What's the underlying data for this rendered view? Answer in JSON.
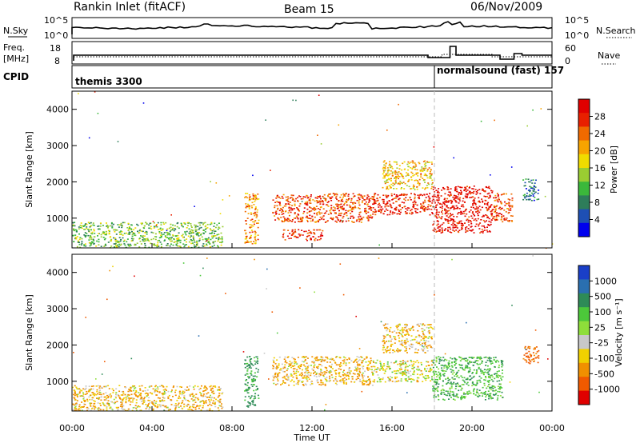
{
  "header": {
    "station": "Rankin Inlet (fitACF)",
    "beam": "Beam 15",
    "date": "06/Nov/2009"
  },
  "sky_panel": {
    "left_label": "N.Sky",
    "right_label": "N.Search",
    "left_top_tick": "10^5",
    "left_bottom_tick": "10^0",
    "right_top_tick": "10^5",
    "right_bottom_tick": "10^0"
  },
  "freq_panel": {
    "left_label_line1": "Freq.",
    "left_label_line2": "[MHz]",
    "right_label": "Nave",
    "left_top_tick": "18",
    "left_bottom_tick": "8",
    "right_top_tick": "60",
    "right_bottom_tick": "0"
  },
  "cpid_panel": {
    "label": "CPID",
    "program1": "themis 3300",
    "program2": "normalsound (fast) 157"
  },
  "power_panel": {
    "ylabel": "Slant Range [km]",
    "yticks": [
      "1000",
      "2000",
      "3000",
      "4000"
    ],
    "colorbar_label": "Power [dB]",
    "colorbar_ticks": [
      "4",
      "8",
      "12",
      "16",
      "20",
      "24",
      "28"
    ],
    "colors": [
      "#0000ee",
      "#1e4fb4",
      "#2e7d5a",
      "#3bb83b",
      "#9acd32",
      "#f0dc00",
      "#f7a400",
      "#f06a00",
      "#e82000",
      "#e00000"
    ]
  },
  "velocity_panel": {
    "ylabel": "Slant Range [km]",
    "yticks": [
      "1000",
      "2000",
      "3000",
      "4000"
    ],
    "colorbar_label": "Velocity [m s⁻¹]",
    "colorbar_ticks": [
      "1000",
      "500",
      "100",
      "25",
      "-25",
      "-100",
      "-500",
      "-1000"
    ],
    "colors": [
      "#1a3fc8",
      "#2a6fb0",
      "#2e8b57",
      "#4cc83a",
      "#8ede3a",
      "#c8c8c8",
      "#f0d000",
      "#f09000",
      "#f05a00",
      "#e00000"
    ]
  },
  "xaxis": {
    "label": "Time UT",
    "ticks": [
      "00:00",
      "04:00",
      "08:00",
      "12:00",
      "16:00",
      "20:00",
      "00:00"
    ]
  },
  "chart_data": {
    "type": "heatmap",
    "title": "Rankin Inlet (fitACF)",
    "xlabel": "Time UT",
    "ylabel": "Slant Range [km]",
    "xlim": [
      "00:00",
      "24:00"
    ],
    "ylim": [
      180,
      4500
    ],
    "mode_change_time": "18:00",
    "power_regions": [
      {
        "t_start": 0.0,
        "t_end": 7.5,
        "range_min": 200,
        "range_max": 900,
        "power_db": 12
      },
      {
        "t_start": 8.6,
        "t_end": 9.3,
        "range_min": 300,
        "range_max": 1700,
        "power_db": 20
      },
      {
        "t_start": 10.0,
        "t_end": 15.0,
        "range_min": 900,
        "range_max": 1700,
        "power_db": 24
      },
      {
        "t_start": 10.5,
        "t_end": 12.5,
        "range_min": 400,
        "range_max": 700,
        "power_db": 26
      },
      {
        "t_start": 15.0,
        "t_end": 18.0,
        "range_min": 1100,
        "range_max": 1700,
        "power_db": 26
      },
      {
        "t_start": 15.5,
        "t_end": 18.0,
        "range_min": 1800,
        "range_max": 2600,
        "power_db": 18
      },
      {
        "t_start": 18.0,
        "t_end": 21.0,
        "range_min": 600,
        "range_max": 1900,
        "power_db": 28
      },
      {
        "t_start": 21.0,
        "t_end": 22.0,
        "range_min": 900,
        "range_max": 1700,
        "power_db": 24
      },
      {
        "t_start": 22.5,
        "t_end": 23.3,
        "range_min": 1500,
        "range_max": 2100,
        "power_db": 6
      }
    ],
    "velocity_regions": [
      {
        "t_start": 0.0,
        "t_end": 7.5,
        "range_min": 200,
        "range_max": 900,
        "velocity": -100
      },
      {
        "t_start": 8.6,
        "t_end": 9.3,
        "range_min": 300,
        "range_max": 1700,
        "velocity": 300
      },
      {
        "t_start": 10.0,
        "t_end": 15.0,
        "range_min": 900,
        "range_max": 1700,
        "velocity": -100
      },
      {
        "t_start": 15.0,
        "t_end": 18.0,
        "range_min": 1000,
        "range_max": 1600,
        "velocity": 0
      },
      {
        "t_start": 15.5,
        "t_end": 18.0,
        "range_min": 1800,
        "range_max": 2600,
        "velocity": -100
      },
      {
        "t_start": 18.0,
        "t_end": 21.5,
        "range_min": 500,
        "range_max": 1700,
        "velocity": 200
      },
      {
        "t_start": 22.5,
        "t_end": 23.3,
        "range_min": 1500,
        "range_max": 2000,
        "velocity": -300
      }
    ]
  }
}
